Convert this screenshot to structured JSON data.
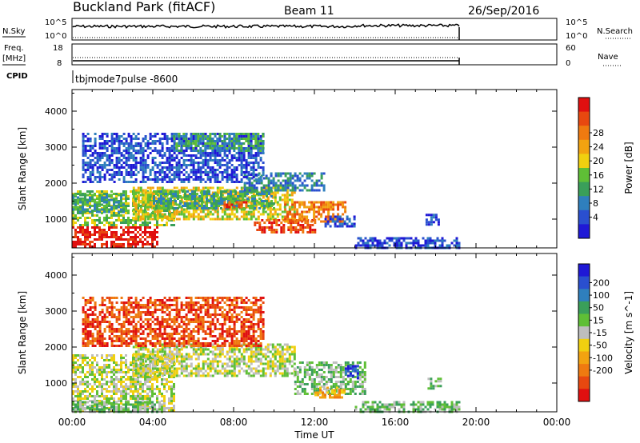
{
  "header": {
    "site": "Buckland Park (fitACF)",
    "beam": "Beam 11",
    "date": "26/Sep/2016"
  },
  "strip_labels": {
    "nsky": "N.Sky",
    "nsky_top": "10^5",
    "nsky_bottom": "10^0",
    "nsearch": "N.Search",
    "nsearch_top": "10^5",
    "nsearch_bottom": "10^0",
    "freq_line1": "Freq.",
    "freq_line2": "[MHz]",
    "freq_top": "18",
    "freq_bottom": "8",
    "nave": "Nave",
    "nave_top": "60",
    "nave_bottom": "0",
    "cpid": "CPID",
    "cpid_value": "tbjmode7pulse  -8600"
  },
  "chart_data": [
    {
      "type": "heatmap",
      "name": "power",
      "ylabel": "Slant Range [km]",
      "yticks": [
        1000,
        2000,
        3000,
        4000
      ],
      "ylim": [
        200,
        4600
      ],
      "xlim": [
        0,
        24
      ],
      "xticks": [
        "00:00",
        "04:00",
        "08:00",
        "12:00",
        "16:00",
        "20:00",
        "00:00"
      ],
      "colorbar": {
        "label": "Power [dB]",
        "ticks": [
          "4",
          "8",
          "12",
          "16",
          "20",
          "24",
          "28"
        ],
        "colors": [
          "#1f18d6",
          "#2a4fcf",
          "#2f7fbd",
          "#3a9f5a",
          "#5fbf36",
          "#f0d010",
          "#f2a310",
          "#ef7a10",
          "#e84810",
          "#e01010"
        ]
      },
      "regions": [
        {
          "t0": 0.0,
          "t1": 4.2,
          "r0": 200,
          "r1": 800,
          "level": 9
        },
        {
          "t0": 0.0,
          "t1": 5.0,
          "r0": 800,
          "r1": 1800,
          "level": 4
        },
        {
          "t0": 0.0,
          "t1": 2.5,
          "r0": 1200,
          "r1": 1700,
          "level": 3
        },
        {
          "t0": 3.0,
          "t1": 11.0,
          "r0": 1000,
          "r1": 1900,
          "level": 5
        },
        {
          "t0": 4.0,
          "t1": 10.0,
          "r0": 1300,
          "r1": 1800,
          "level": 3
        },
        {
          "t0": 7.5,
          "t1": 8.6,
          "r0": 1300,
          "r1": 1500,
          "level": 8
        },
        {
          "t0": 8.5,
          "t1": 12.5,
          "r0": 1800,
          "r1": 2300,
          "level": 2
        },
        {
          "t0": 0.5,
          "t1": 9.5,
          "r0": 2000,
          "r1": 3400,
          "level": 1
        },
        {
          "t0": 5.0,
          "t1": 9.5,
          "r0": 2900,
          "r1": 3400,
          "level": 3
        },
        {
          "t0": 9.0,
          "t1": 12.0,
          "r0": 600,
          "r1": 1000,
          "level": 8
        },
        {
          "t0": 10.5,
          "t1": 13.5,
          "r0": 900,
          "r1": 1500,
          "level": 7
        },
        {
          "t0": 12.5,
          "t1": 14.0,
          "r0": 800,
          "r1": 1100,
          "level": 1
        },
        {
          "t0": 14.0,
          "t1": 19.2,
          "r0": 200,
          "r1": 500,
          "level": 1
        },
        {
          "t0": 17.5,
          "t1": 18.2,
          "r0": 850,
          "r1": 1150,
          "level": 1
        }
      ]
    },
    {
      "type": "heatmap",
      "name": "velocity",
      "ylabel": "Slant Range [km]",
      "yticks": [
        1000,
        2000,
        3000,
        4000
      ],
      "ylim": [
        200,
        4600
      ],
      "xlim": [
        0,
        24
      ],
      "xlabel": "Time UT",
      "xticks": [
        "00:00",
        "04:00",
        "08:00",
        "12:00",
        "16:00",
        "20:00",
        "00:00"
      ],
      "colorbar": {
        "label": "Velocity [m s^-1]",
        "ticks": [
          "200",
          "100",
          "50",
          "15",
          "-15",
          "-50",
          "-100",
          "-200"
        ],
        "colors": [
          "#1f18d6",
          "#2a4fcf",
          "#2f7fbd",
          "#3a9f5a",
          "#5fbf36",
          "#bebebe",
          "#f0d010",
          "#f2a310",
          "#ef7a10",
          "#e84810",
          "#e01010"
        ]
      },
      "regions": [
        {
          "t0": 0.0,
          "t1": 5.0,
          "r0": 200,
          "r1": 1800,
          "level": 5
        },
        {
          "t0": 3.0,
          "t1": 11.0,
          "r0": 1200,
          "r1": 2100,
          "level": 5
        },
        {
          "t0": 0.0,
          "t1": 4.5,
          "r0": 200,
          "r1": 500,
          "level": 4
        },
        {
          "t0": 11.0,
          "t1": 14.5,
          "r0": 700,
          "r1": 1600,
          "level": 4
        },
        {
          "t0": 13.5,
          "t1": 14.2,
          "r0": 1100,
          "r1": 1500,
          "level": 1
        },
        {
          "t0": 12.0,
          "t1": 13.5,
          "r0": 600,
          "r1": 900,
          "level": 7
        },
        {
          "t0": 14.0,
          "t1": 19.2,
          "r0": 200,
          "r1": 500,
          "level": 4
        },
        {
          "t0": 17.6,
          "t1": 18.2,
          "r0": 850,
          "r1": 1150,
          "level": 4
        },
        {
          "t0": 0.5,
          "t1": 9.5,
          "r0": 2000,
          "r1": 3400,
          "level": 9
        }
      ]
    }
  ]
}
